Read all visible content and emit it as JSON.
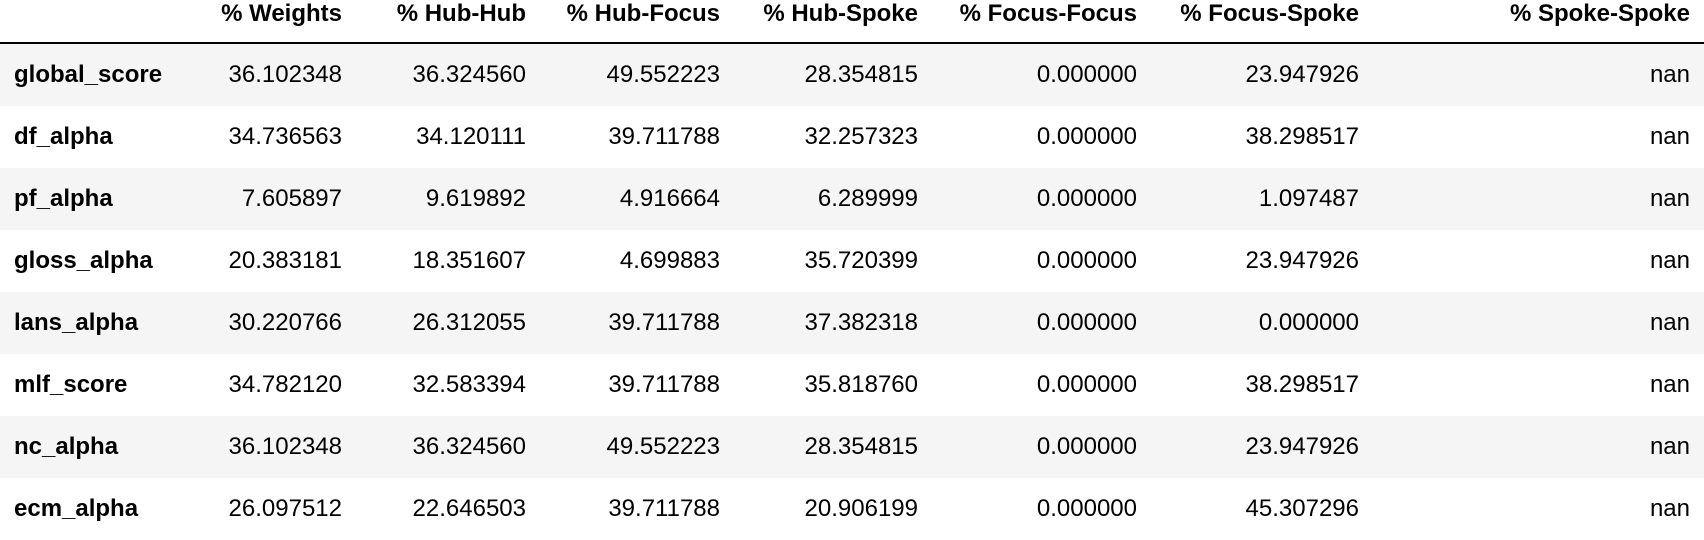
{
  "table": {
    "columns": [
      "",
      "% Weights",
      "% Hub-Hub",
      "% Hub-Focus",
      "% Hub-Spoke",
      "% Focus-Focus",
      "% Focus-Spoke",
      "% Spoke-Spoke"
    ],
    "rows": [
      {
        "index": "global_score",
        "values": [
          "36.102348",
          "36.324560",
          "49.552223",
          "28.354815",
          "0.000000",
          "23.947926",
          "nan"
        ]
      },
      {
        "index": "df_alpha",
        "values": [
          "34.736563",
          "34.120111",
          "39.711788",
          "32.257323",
          "0.000000",
          "38.298517",
          "nan"
        ]
      },
      {
        "index": "pf_alpha",
        "values": [
          "7.605897",
          "9.619892",
          "4.916664",
          "6.289999",
          "0.000000",
          "1.097487",
          "nan"
        ]
      },
      {
        "index": "gloss_alpha",
        "values": [
          "20.383181",
          "18.351607",
          "4.699883",
          "35.720399",
          "0.000000",
          "23.947926",
          "nan"
        ]
      },
      {
        "index": "lans_alpha",
        "values": [
          "30.220766",
          "26.312055",
          "39.711788",
          "37.382318",
          "0.000000",
          "0.000000",
          "nan"
        ]
      },
      {
        "index": "mlf_score",
        "values": [
          "34.782120",
          "32.583394",
          "39.711788",
          "35.818760",
          "0.000000",
          "38.298517",
          "nan"
        ]
      },
      {
        "index": "nc_alpha",
        "values": [
          "36.102348",
          "36.324560",
          "49.552223",
          "28.354815",
          "0.000000",
          "23.947926",
          "nan"
        ]
      },
      {
        "index": "ecm_alpha",
        "values": [
          "26.097512",
          "22.646503",
          "39.711788",
          "20.906199",
          "0.000000",
          "45.307296",
          "nan"
        ]
      }
    ]
  },
  "colors": {
    "stripe": "#f5f5f5",
    "background": "#ffffff",
    "text": "#000000"
  }
}
